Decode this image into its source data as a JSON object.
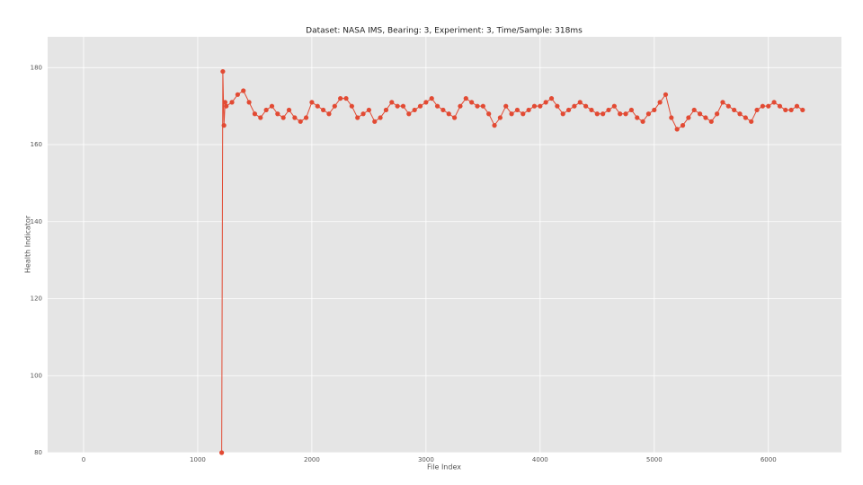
{
  "chart_data": {
    "type": "line",
    "title": "Dataset: NASA IMS, Bearing: 3, Experiment: 3, Time/Sample: 318ms",
    "x_label": "File Index",
    "y_label": "Health Indicator",
    "xlim": [
      -315,
      6640
    ],
    "ylim": [
      80,
      188
    ],
    "xticks": [
      0,
      1000,
      2000,
      3000,
      4000,
      5000,
      6000
    ],
    "yticks": [
      80,
      100,
      120,
      140,
      160,
      180
    ],
    "grid": true,
    "series": [
      {
        "name": "Health Indicator",
        "color": "#e24a33",
        "x": [
          1210,
          1220,
          1230,
          1240,
          1250,
          1300,
          1350,
          1400,
          1450,
          1500,
          1550,
          1600,
          1650,
          1700,
          1750,
          1800,
          1850,
          1900,
          1950,
          2000,
          2050,
          2100,
          2150,
          2200,
          2250,
          2300,
          2350,
          2400,
          2450,
          2500,
          2550,
          2600,
          2650,
          2700,
          2750,
          2800,
          2850,
          2900,
          2950,
          3000,
          3050,
          3100,
          3150,
          3200,
          3250,
          3300,
          3350,
          3400,
          3450,
          3500,
          3550,
          3600,
          3650,
          3700,
          3750,
          3800,
          3850,
          3900,
          3950,
          4000,
          4050,
          4100,
          4150,
          4200,
          4250,
          4300,
          4350,
          4400,
          4450,
          4500,
          4550,
          4600,
          4650,
          4700,
          4750,
          4800,
          4850,
          4900,
          4950,
          5000,
          5050,
          5100,
          5150,
          5200,
          5250,
          5300,
          5350,
          5400,
          5450,
          5500,
          5550,
          5600,
          5650,
          5700,
          5750,
          5800,
          5850,
          5900,
          5950,
          6000,
          6050,
          6100,
          6150,
          6200,
          6250,
          6300
        ],
        "values": [
          80,
          179,
          165,
          171,
          170,
          171,
          173,
          174,
          171,
          168,
          167,
          169,
          170,
          168,
          167,
          169,
          167,
          166,
          167,
          171,
          170,
          169,
          168,
          170,
          172,
          172,
          170,
          167,
          168,
          169,
          166,
          167,
          169,
          171,
          170,
          170,
          168,
          169,
          170,
          171,
          172,
          170,
          169,
          168,
          167,
          170,
          172,
          171,
          170,
          170,
          168,
          165,
          167,
          170,
          168,
          169,
          168,
          169,
          170,
          170,
          171,
          172,
          170,
          168,
          169,
          170,
          171,
          170,
          169,
          168,
          168,
          169,
          170,
          168,
          168,
          169,
          167,
          166,
          168,
          169,
          171,
          173,
          167,
          164,
          165,
          167,
          169,
          168,
          167,
          166,
          168,
          171,
          170,
          169,
          168,
          167,
          166,
          169,
          170,
          170,
          171,
          170,
          169,
          169,
          170,
          169
        ]
      }
    ]
  }
}
